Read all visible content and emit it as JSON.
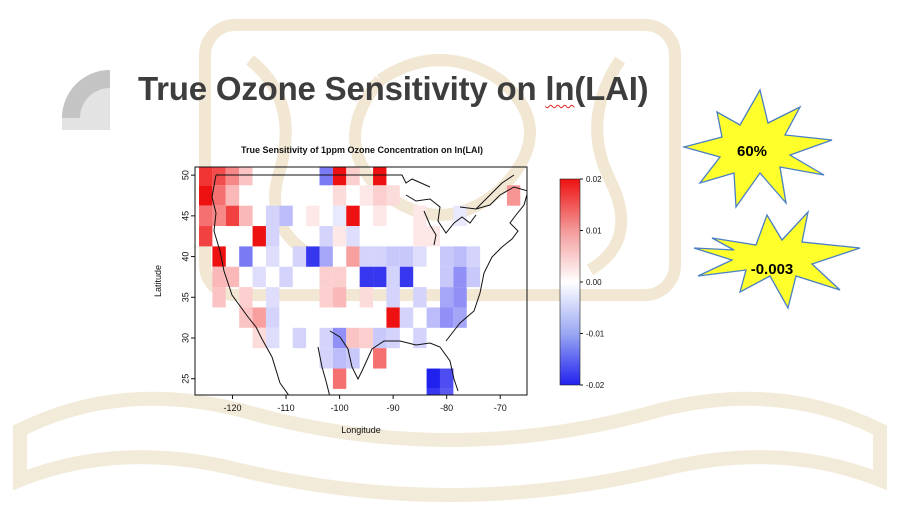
{
  "slide": {
    "title_main": "True Ozone Sensitivity on ",
    "title_marked": "ln",
    "title_tail": "(LAI)"
  },
  "callouts": {
    "burst1": "60%",
    "burst2": "-0.003"
  },
  "chart_data": {
    "type": "heatmap",
    "title": "True Sensitivity of 1ppm Ozone Concentration on ln(LAI)",
    "xlabel": "Longitude",
    "ylabel": "Latitude",
    "xlim": [
      -127,
      -65
    ],
    "ylim": [
      23,
      51
    ],
    "xticks": [
      -120,
      -110,
      -100,
      -90,
      -80,
      -70
    ],
    "yticks": [
      25,
      30,
      35,
      40,
      45,
      50
    ],
    "cell_size_deg": 2.5,
    "colorbar": {
      "min": -0.02,
      "max": 0.02,
      "ticks": [
        0.02,
        0.01,
        0.0,
        -0.01,
        -0.02
      ],
      "tick_labels": [
        "0.02",
        "0.01",
        "0.00",
        "-0.01",
        "-0.02"
      ],
      "colors": {
        "low": "#2121ee",
        "mid": "#ffffff",
        "high": "#ee1111"
      }
    },
    "cells": [
      {
        "lon": -125,
        "lat": 50,
        "value": 0.017
      },
      {
        "lon": -122.5,
        "lat": 50,
        "value": 0.015
      },
      {
        "lon": -120,
        "lat": 50,
        "value": 0.01
      },
      {
        "lon": -117.5,
        "lat": 50,
        "value": 0.005
      },
      {
        "lon": -102.5,
        "lat": 50,
        "value": -0.012
      },
      {
        "lon": -100,
        "lat": 50,
        "value": 0.02
      },
      {
        "lon": -97.5,
        "lat": 50,
        "value": 0.004
      },
      {
        "lon": -92.5,
        "lat": 50,
        "value": 0.02
      },
      {
        "lon": -125,
        "lat": 47.5,
        "value": 0.02
      },
      {
        "lon": -122.5,
        "lat": 47.5,
        "value": 0.012
      },
      {
        "lon": -120,
        "lat": 47.5,
        "value": 0.006
      },
      {
        "lon": -100,
        "lat": 47.5,
        "value": 0.003
      },
      {
        "lon": -95,
        "lat": 47.5,
        "value": 0.002
      },
      {
        "lon": -92.5,
        "lat": 47.5,
        "value": 0.004
      },
      {
        "lon": -90,
        "lat": 47.5,
        "value": 0.003
      },
      {
        "lon": -67.5,
        "lat": 47.5,
        "value": 0.009
      },
      {
        "lon": -125,
        "lat": 45,
        "value": 0.012
      },
      {
        "lon": -122.5,
        "lat": 45,
        "value": 0.01
      },
      {
        "lon": -120,
        "lat": 45,
        "value": 0.016
      },
      {
        "lon": -117.5,
        "lat": 45,
        "value": 0.006
      },
      {
        "lon": -112.5,
        "lat": 45,
        "value": -0.004
      },
      {
        "lon": -110,
        "lat": 45,
        "value": -0.006
      },
      {
        "lon": -105,
        "lat": 45,
        "value": 0.002
      },
      {
        "lon": -100,
        "lat": 45,
        "value": -0.002
      },
      {
        "lon": -97.5,
        "lat": 45,
        "value": 0.02
      },
      {
        "lon": -92.5,
        "lat": 45,
        "value": 0.002
      },
      {
        "lon": -85,
        "lat": 45,
        "value": 0.002
      },
      {
        "lon": -77.5,
        "lat": 45,
        "value": -0.002
      },
      {
        "lon": -125,
        "lat": 42.5,
        "value": 0.016
      },
      {
        "lon": -115,
        "lat": 42.5,
        "value": 0.02
      },
      {
        "lon": -112.5,
        "lat": 42.5,
        "value": -0.004
      },
      {
        "lon": -102.5,
        "lat": 42.5,
        "value": -0.004
      },
      {
        "lon": -100,
        "lat": 42.5,
        "value": 0.002
      },
      {
        "lon": -97.5,
        "lat": 42.5,
        "value": -0.003
      },
      {
        "lon": -85,
        "lat": 42.5,
        "value": 0.002
      },
      {
        "lon": -82.5,
        "lat": 42.5,
        "value": 0.002
      },
      {
        "lon": -122.5,
        "lat": 40,
        "value": 0.02
      },
      {
        "lon": -117.5,
        "lat": 40,
        "value": -0.012
      },
      {
        "lon": -112.5,
        "lat": 40,
        "value": -0.003
      },
      {
        "lon": -107.5,
        "lat": 40,
        "value": -0.004
      },
      {
        "lon": -105,
        "lat": 40,
        "value": -0.018
      },
      {
        "lon": -102.5,
        "lat": 40,
        "value": -0.008
      },
      {
        "lon": -97.5,
        "lat": 40,
        "value": 0.008
      },
      {
        "lon": -95,
        "lat": 40,
        "value": -0.004
      },
      {
        "lon": -92.5,
        "lat": 40,
        "value": -0.004
      },
      {
        "lon": -90,
        "lat": 40,
        "value": -0.005
      },
      {
        "lon": -87.5,
        "lat": 40,
        "value": -0.005
      },
      {
        "lon": -85,
        "lat": 40,
        "value": -0.003
      },
      {
        "lon": -80,
        "lat": 40,
        "value": -0.005
      },
      {
        "lon": -77.5,
        "lat": 40,
        "value": -0.006
      },
      {
        "lon": -75,
        "lat": 40,
        "value": -0.004
      },
      {
        "lon": -122.5,
        "lat": 37.5,
        "value": 0.006
      },
      {
        "lon": -120,
        "lat": 37.5,
        "value": 0.006
      },
      {
        "lon": -115,
        "lat": 37.5,
        "value": -0.003
      },
      {
        "lon": -110,
        "lat": 37.5,
        "value": -0.004
      },
      {
        "lon": -102.5,
        "lat": 37.5,
        "value": 0.004
      },
      {
        "lon": -100,
        "lat": 37.5,
        "value": 0.004
      },
      {
        "lon": -95,
        "lat": 37.5,
        "value": -0.018
      },
      {
        "lon": -92.5,
        "lat": 37.5,
        "value": -0.018
      },
      {
        "lon": -90,
        "lat": 37.5,
        "value": -0.004
      },
      {
        "lon": -87.5,
        "lat": 37.5,
        "value": -0.018
      },
      {
        "lon": -80,
        "lat": 37.5,
        "value": -0.005
      },
      {
        "lon": -77.5,
        "lat": 37.5,
        "value": -0.01
      },
      {
        "lon": -75,
        "lat": 37.5,
        "value": -0.005
      },
      {
        "lon": -122.5,
        "lat": 35,
        "value": 0.005
      },
      {
        "lon": -117.5,
        "lat": 35,
        "value": 0.004
      },
      {
        "lon": -112.5,
        "lat": 35,
        "value": -0.003
      },
      {
        "lon": -102.5,
        "lat": 35,
        "value": 0.004
      },
      {
        "lon": -100,
        "lat": 35,
        "value": 0.006
      },
      {
        "lon": -95,
        "lat": 35,
        "value": 0.003
      },
      {
        "lon": -90,
        "lat": 35,
        "value": -0.004
      },
      {
        "lon": -85,
        "lat": 35,
        "value": -0.004
      },
      {
        "lon": -80,
        "lat": 35,
        "value": -0.008
      },
      {
        "lon": -77.5,
        "lat": 35,
        "value": -0.01
      },
      {
        "lon": -117.5,
        "lat": 32.5,
        "value": 0.005
      },
      {
        "lon": -115,
        "lat": 32.5,
        "value": 0.008
      },
      {
        "lon": -112.5,
        "lat": 32.5,
        "value": -0.004
      },
      {
        "lon": -90,
        "lat": 32.5,
        "value": 0.02
      },
      {
        "lon": -87.5,
        "lat": 32.5,
        "value": -0.004
      },
      {
        "lon": -82.5,
        "lat": 32.5,
        "value": -0.006
      },
      {
        "lon": -80,
        "lat": 32.5,
        "value": -0.01
      },
      {
        "lon": -77.5,
        "lat": 32.5,
        "value": -0.008
      },
      {
        "lon": -115,
        "lat": 30,
        "value": 0.003
      },
      {
        "lon": -112.5,
        "lat": 30,
        "value": -0.003
      },
      {
        "lon": -107.5,
        "lat": 30,
        "value": -0.004
      },
      {
        "lon": -102.5,
        "lat": 30,
        "value": -0.004
      },
      {
        "lon": -100,
        "lat": 30,
        "value": -0.01
      },
      {
        "lon": -97.5,
        "lat": 30,
        "value": 0.005
      },
      {
        "lon": -95,
        "lat": 30,
        "value": 0.004
      },
      {
        "lon": -92.5,
        "lat": 30,
        "value": -0.005
      },
      {
        "lon": -90,
        "lat": 30,
        "value": -0.004
      },
      {
        "lon": -85,
        "lat": 30,
        "value": -0.004
      },
      {
        "lon": -102.5,
        "lat": 27.5,
        "value": -0.004
      },
      {
        "lon": -100,
        "lat": 27.5,
        "value": -0.006
      },
      {
        "lon": -97.5,
        "lat": 27.5,
        "value": -0.005
      },
      {
        "lon": -92.5,
        "lat": 27.5,
        "value": 0.012
      },
      {
        "lon": -100,
        "lat": 25,
        "value": 0.012
      },
      {
        "lon": -82.5,
        "lat": 25,
        "value": -0.02
      },
      {
        "lon": -80,
        "lat": 25,
        "value": -0.016
      },
      {
        "lon": -82.5,
        "lat": 22.5,
        "value": -0.018
      },
      {
        "lon": -80,
        "lat": 22.5,
        "value": -0.015
      }
    ]
  }
}
